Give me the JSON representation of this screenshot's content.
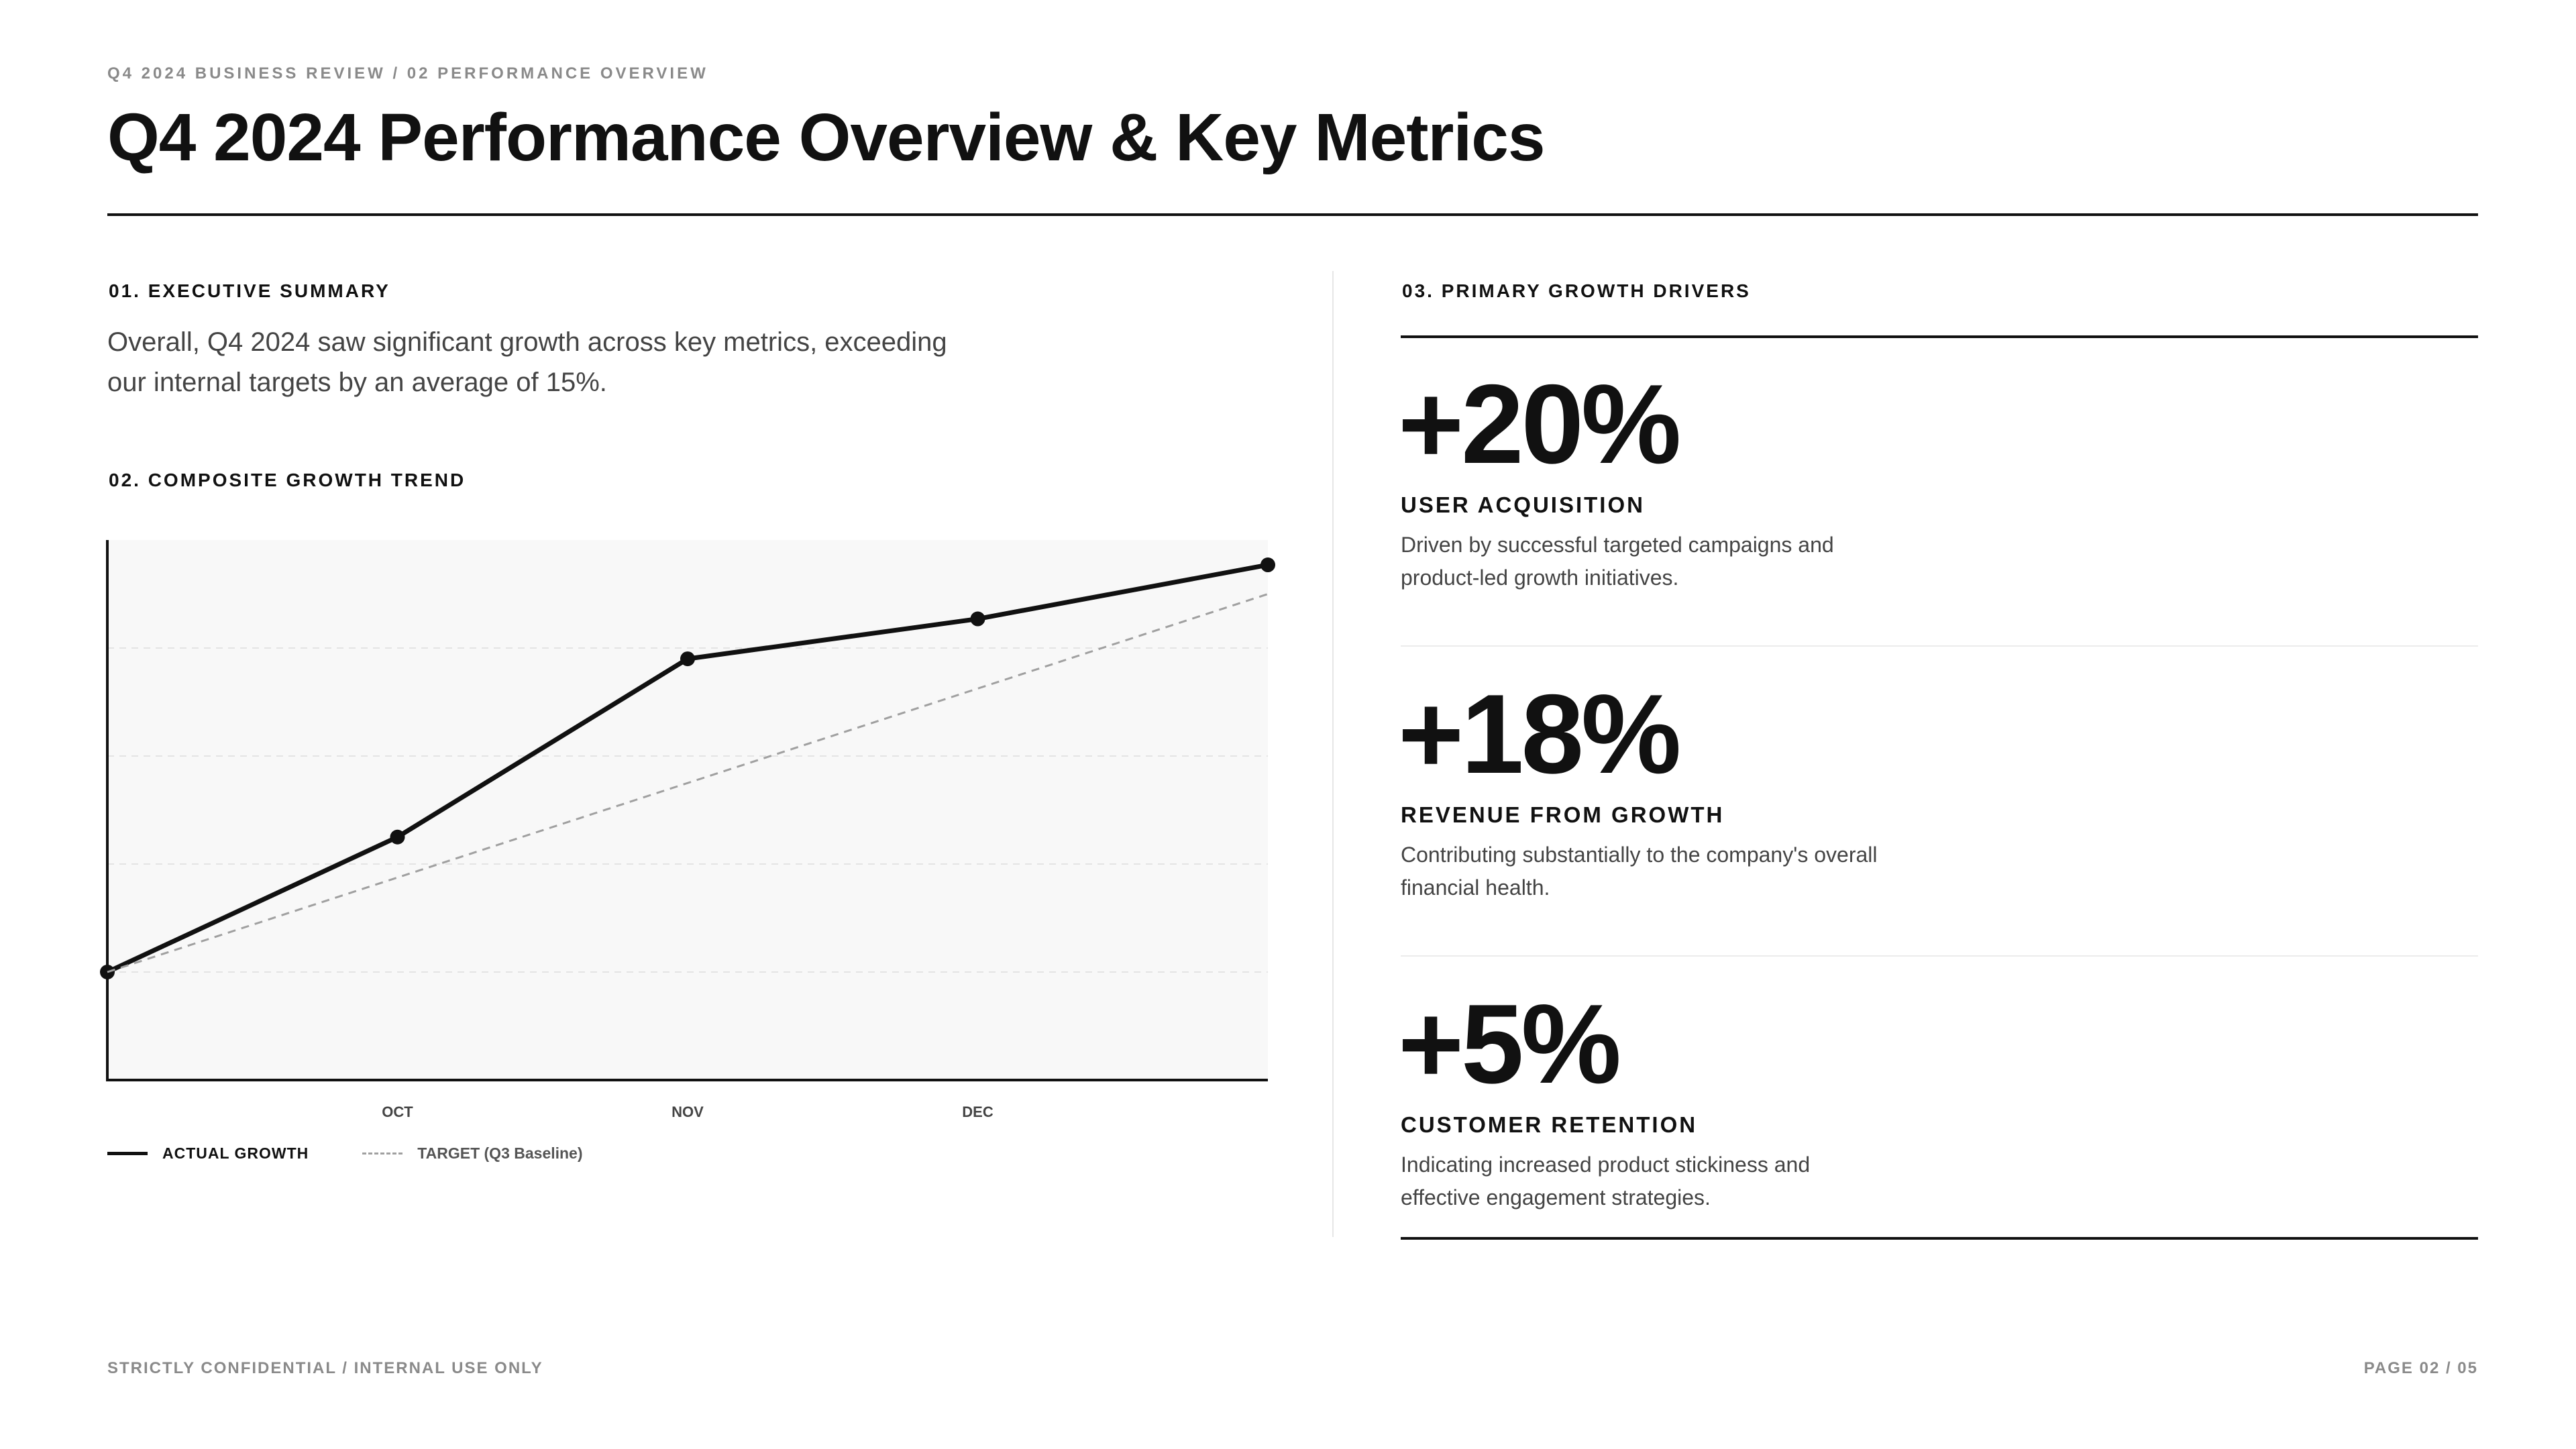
{
  "header": {
    "eyebrow": "Q4 2024 BUSINESS REVIEW / 02 PERFORMANCE OVERVIEW",
    "title": "Q4 2024 Performance Overview & Key Metrics"
  },
  "summary": {
    "label": "01. EXECUTIVE SUMMARY",
    "text": "Overall, Q4 2024 saw significant growth across key metrics, exceeding our internal targets by an average of 15%."
  },
  "trend": {
    "label": "02. COMPOSITE GROWTH TREND",
    "legend": {
      "actual": "ACTUAL GROWTH",
      "target": "TARGET (Q3 Baseline)"
    }
  },
  "drivers": {
    "label": "03. PRIMARY GROWTH DRIVERS",
    "items": [
      {
        "value": "+20%",
        "title": "USER ACQUISITION",
        "desc": "Driven by successful targeted campaigns and product-led growth initiatives."
      },
      {
        "value": "+18%",
        "title": "REVENUE FROM GROWTH",
        "desc": "Contributing substantially to the company's overall financial health."
      },
      {
        "value": "+5%",
        "title": "CUSTOMER RETENTION",
        "desc": "Indicating increased product stickiness and effective engagement strategies."
      }
    ]
  },
  "footer": {
    "left": "STRICTLY CONFIDENTIAL / INTERNAL USE ONLY",
    "right": "PAGE 02 / 05"
  },
  "colors": {
    "actual": "#111111",
    "target": "#a0a0a0",
    "plot_bg": "#f8f8f8",
    "grid": "#e4e4e4"
  },
  "chart_data": {
    "type": "line",
    "title": "",
    "xlabel": "",
    "ylabel": "",
    "x": [
      0,
      1,
      2,
      3,
      4
    ],
    "tick_labels": [
      "OCT",
      "NOV",
      "DEC"
    ],
    "tick_positions": [
      1,
      2,
      3
    ],
    "xlim": [
      0,
      4
    ],
    "ylim": [
      0,
      5
    ],
    "grid": true,
    "legend_position": "bottom-left",
    "series": [
      {
        "name": "ACTUAL GROWTH",
        "style": "solid",
        "markers": true,
        "values": [
          1.0,
          2.25,
          3.9,
          4.27,
          4.77
        ]
      },
      {
        "name": "TARGET (Q3 Baseline)",
        "style": "dashed",
        "markers": false,
        "values": [
          1.0,
          null,
          null,
          null,
          4.5
        ]
      }
    ]
  }
}
